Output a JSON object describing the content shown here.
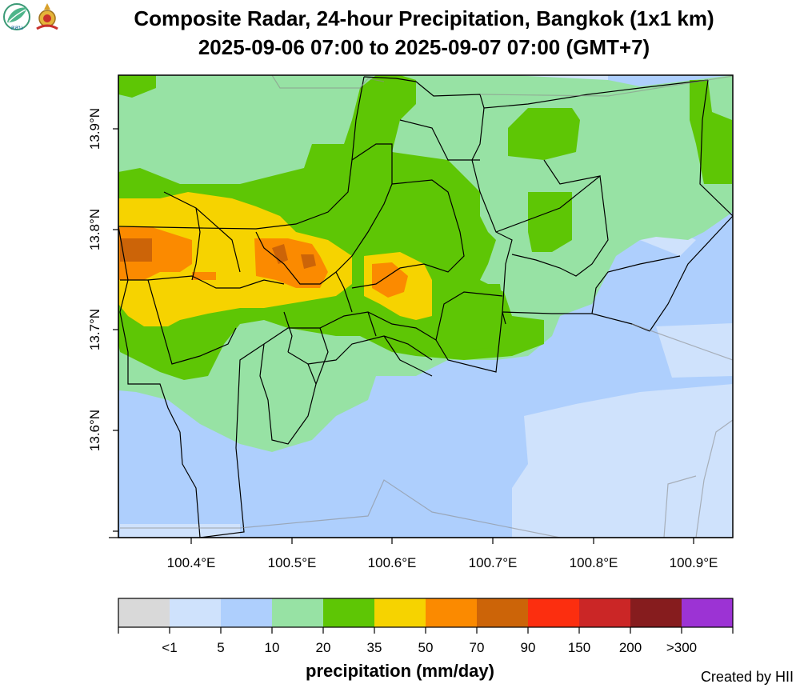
{
  "header": {
    "title_line1": "Composite Radar, 24-hour Precipitation, Bangkok (1x1 km)",
    "title_line2": "2025-09-06 07:00 to 2025-09-07 07:00 (GMT+7)",
    "logos": [
      {
        "name": "agency-leaf-logo",
        "lettering": "สสน"
      },
      {
        "name": "royal-emblem-logo"
      }
    ]
  },
  "map": {
    "y_ticks": [
      "13.9°N",
      "13.8°N",
      "13.7°N",
      "13.6°N"
    ],
    "x_ticks": [
      "100.4°E",
      "100.5°E",
      "100.6°E",
      "100.7°E",
      "100.8°E",
      "100.9°E"
    ]
  },
  "legend": {
    "title": "precipitation (mm/day)",
    "labels": [
      "<1",
      "5",
      "10",
      "20",
      "35",
      "50",
      "70",
      "90",
      "150",
      "200",
      ">300"
    ],
    "colors": [
      "#d9d9d9",
      "#cfe2fc",
      "#aecffd",
      "#97e2a4",
      "#5ec605",
      "#f6d300",
      "#fb8a00",
      "#cc6408",
      "#fc2e0f",
      "#cb2626",
      "#861c1e",
      "#9c33d4"
    ]
  },
  "footer": {
    "credit": "Created by HII"
  }
}
